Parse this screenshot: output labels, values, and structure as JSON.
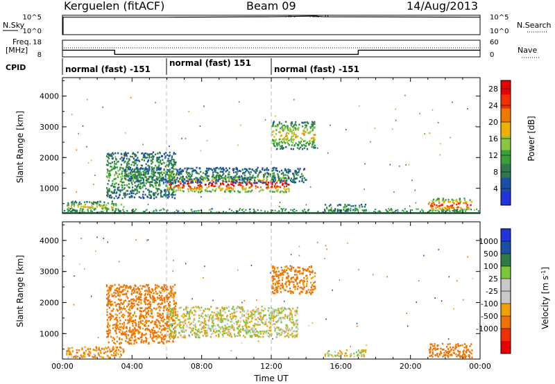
{
  "header": {
    "station": "Kerguelen (fitACF)",
    "beam": "Beam 09",
    "date": "14/Aug/2013"
  },
  "panels": {
    "nsky_label": "N.Sky",
    "nsearch_label": "N.Search",
    "nsky_ticks": [
      "10^5",
      "10^0"
    ],
    "nsearch_ticks": [
      "10^5",
      "10^0"
    ],
    "freq_label_1": "Freq.",
    "freq_label_2": "[MHz]",
    "freq_ticks": [
      "18",
      "8"
    ],
    "nave_label": "Nave",
    "nave_ticks": [
      "60",
      "0"
    ],
    "cpid_label": "CPID",
    "cpid_segments": [
      "normal (fast) -151",
      "normal (fast) 151",
      "normal (fast) -151"
    ]
  },
  "axes": {
    "xlabel": "Time UT",
    "xticks": [
      "00:00",
      "04:00",
      "08:00",
      "12:00",
      "16:00",
      "20:00",
      "00:00"
    ],
    "ylabel": "Slant Range [km]",
    "yticks": [
      "1000",
      "2000",
      "3000",
      "4000"
    ],
    "power_label": "Power [dB]",
    "velocity_label": "Velocity [m s",
    "velocity_label_sup": "-1",
    "velocity_label_end": "]"
  },
  "chart_data": [
    {
      "type": "line",
      "name": "N.Sky",
      "x_hours": [
        0,
        6,
        12,
        14.5,
        15,
        24
      ],
      "y_log": [
        4.5,
        4.5,
        4.6,
        4.8,
        4.6,
        4.5
      ],
      "ylim_log": [
        0,
        5
      ]
    },
    {
      "type": "line",
      "name": "Freq",
      "x_hours": [
        0,
        3.0,
        3.0,
        17.0,
        17.0,
        24
      ],
      "values": [
        12,
        12,
        9.5,
        9.5,
        12,
        12
      ],
      "ylim": [
        8,
        18
      ],
      "unit": "MHz"
    },
    {
      "type": "heatmap",
      "name": "Power",
      "xlabel": "Time UT",
      "ylabel": "Slant Range [km]",
      "xlim_hours": [
        0,
        24
      ],
      "ylim_km": [
        180,
        4600
      ],
      "colorbar": {
        "label": "Power [dB]",
        "ticks": [
          4,
          8,
          12,
          16,
          20,
          24,
          28
        ],
        "range": [
          0,
          30
        ]
      },
      "echo_regions": [
        {
          "t": [
            0.2,
            3.5
          ],
          "r": [
            250,
            600
          ],
          "power": 16
        },
        {
          "t": [
            2.5,
            6.5
          ],
          "r": [
            700,
            2200
          ],
          "power": 12
        },
        {
          "t": [
            6.0,
            13.0
          ],
          "r": [
            900,
            1400
          ],
          "power": 28
        },
        {
          "t": [
            3.5,
            14.0
          ],
          "r": [
            1200,
            1700
          ],
          "power": 8
        },
        {
          "t": [
            12.0,
            14.5
          ],
          "r": [
            2300,
            3200
          ],
          "power": 18
        },
        {
          "t": [
            15.0,
            17.5
          ],
          "r": [
            280,
            500
          ],
          "power": 12
        },
        {
          "t": [
            21.0,
            23.5
          ],
          "r": [
            250,
            700
          ],
          "power": 26
        }
      ]
    },
    {
      "type": "heatmap",
      "name": "Velocity",
      "xlabel": "Time UT",
      "ylabel": "Slant Range [km]",
      "xlim_hours": [
        0,
        24
      ],
      "ylim_km": [
        180,
        4600
      ],
      "colorbar": {
        "label": "Velocity [m s-1]",
        "ticks": [
          1000,
          500,
          100,
          25,
          -25,
          -100,
          -500,
          -1000
        ]
      },
      "echo_regions": [
        {
          "t": [
            0.2,
            3.5
          ],
          "r": [
            250,
            600
          ],
          "velocity": -100
        },
        {
          "t": [
            2.5,
            6.5
          ],
          "r": [
            700,
            2600
          ],
          "velocity": -150
        },
        {
          "t": [
            6.0,
            13.5
          ],
          "r": [
            900,
            1900
          ],
          "velocity": 0
        },
        {
          "t": [
            12.0,
            14.5
          ],
          "r": [
            2300,
            3200
          ],
          "velocity": -150
        },
        {
          "t": [
            15.0,
            17.5
          ],
          "r": [
            280,
            500
          ],
          "velocity": 0
        },
        {
          "t": [
            21.0,
            23.5
          ],
          "r": [
            250,
            700
          ],
          "velocity": -300
        }
      ]
    }
  ],
  "colors": {
    "power_scale": [
      "#2233dd",
      "#1a4fa8",
      "#2e7a4a",
      "#3aa03a",
      "#8cc63f",
      "#f0b000",
      "#f07800",
      "#f03000",
      "#e80000"
    ],
    "velocity_scale": [
      "#e80000",
      "#f03000",
      "#f07000",
      "#f0a000",
      "#c8c8c8",
      "#c8c8c8",
      "#7ac83a",
      "#2e7a4a",
      "#1a4fa8",
      "#2233dd"
    ],
    "ground_scatter": "#c8c8c8"
  }
}
